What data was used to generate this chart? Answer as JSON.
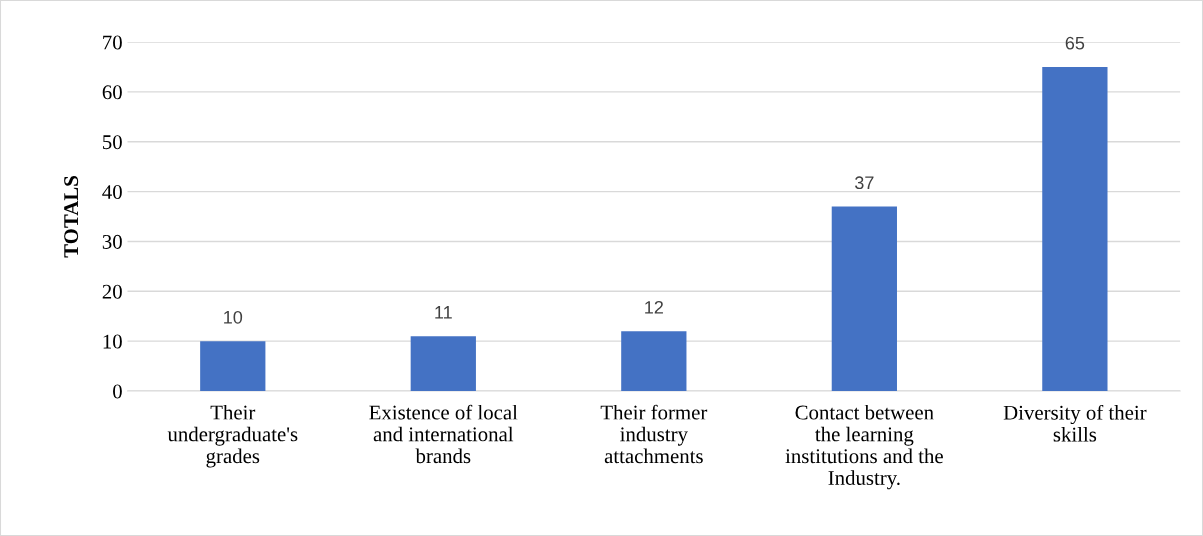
{
  "chart_data": {
    "type": "bar",
    "ylabel": "TOTALS",
    "categories": [
      "Their\nundergraduate's\ngrades",
      "Existence of local\nand international\nbrands",
      "Their former\nindustry\nattachments",
      "Contact between\nthe learning\ninstitutions and the\nIndustry.",
      "Diversity of their\nskills"
    ],
    "values": [
      10,
      11,
      12,
      37,
      65
    ],
    "color": "#4472c4",
    "ylim": [
      0,
      70
    ],
    "yticks": [
      0,
      10,
      20,
      30,
      40,
      50,
      60,
      70
    ],
    "grid": "y",
    "data_labels": true
  }
}
